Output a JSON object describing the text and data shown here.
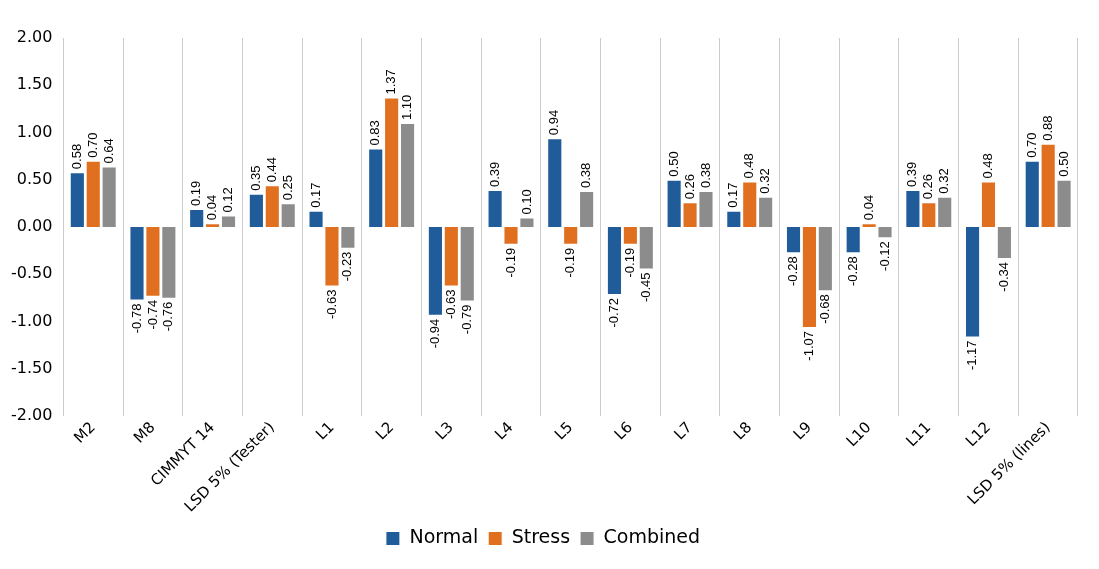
{
  "chart_data": {
    "type": "bar",
    "categories": [
      "M2",
      "M8",
      "CIMMYT 14",
      "LSD 5% (Tester)",
      "L1",
      "L2",
      "L3",
      "L4",
      "L5",
      "L6",
      "L7",
      "L8",
      "L9",
      "L10",
      "L11",
      "L12",
      "LSD 5% (lines)"
    ],
    "series": [
      {
        "name": "Normal",
        "color": "#1f5c99",
        "values": [
          0.58,
          -0.78,
          0.19,
          0.35,
          0.17,
          0.83,
          -0.94,
          0.39,
          0.94,
          -0.72,
          0.5,
          0.17,
          -0.28,
          -0.28,
          0.39,
          -1.17,
          0.7
        ],
        "value_labels": [
          "0.58",
          "-0.78",
          "0.19",
          "0.35",
          "0.17",
          "0.83",
          "-0.94",
          "0.39",
          "0.94",
          "-0.72",
          "0.50",
          "0.17",
          "-0.28",
          "-0.28",
          "0.39",
          "-1.17",
          "0.70"
        ]
      },
      {
        "name": "Stress",
        "color": "#e07020",
        "values": [
          0.7,
          -0.74,
          0.04,
          0.44,
          -0.63,
          1.37,
          -0.63,
          -0.19,
          -0.19,
          -0.19,
          0.26,
          0.48,
          -1.07,
          0.04,
          0.26,
          0.48,
          0.88
        ],
        "value_labels": [
          "0.70",
          "-0.74",
          "0.04",
          "0.44",
          "-0.63",
          "1.37",
          "-0.63",
          "-0.19",
          "-0.19",
          "-0.19",
          "0.26",
          "0.48",
          "-1.07",
          "0.04",
          "0.26",
          "0.48",
          "0.88"
        ]
      },
      {
        "name": "Combined",
        "color": "#8c8c8c",
        "values": [
          0.64,
          -0.76,
          0.12,
          0.25,
          -0.23,
          1.1,
          -0.79,
          0.1,
          0.38,
          -0.45,
          0.38,
          0.32,
          -0.68,
          -0.12,
          0.32,
          -0.34,
          0.5
        ],
        "value_labels": [
          "0.64",
          "-0.76",
          "0.12",
          "0.25",
          "-0.23",
          "1.10",
          "-0.79",
          "0.10",
          "0.38",
          "-0.45",
          "0.38",
          "0.32",
          "-0.68",
          "-0.12",
          "0.32",
          "-0.34",
          "0.50"
        ]
      }
    ],
    "ylim": [
      -2,
      2
    ],
    "yticks": [
      {
        "value": -2,
        "label": "-2.00"
      },
      {
        "value": -1.5,
        "label": "-1.50"
      },
      {
        "value": -1,
        "label": "-1.00"
      },
      {
        "value": -0.5,
        "label": "-0.50"
      },
      {
        "value": 0,
        "label": "0.00"
      },
      {
        "value": 0.5,
        "label": "0.50"
      },
      {
        "value": 1,
        "label": "1.00"
      },
      {
        "value": 1.5,
        "label": "1.50"
      },
      {
        "value": 2,
        "label": "2.00"
      }
    ],
    "grid": "x",
    "legend": "bottom"
  }
}
